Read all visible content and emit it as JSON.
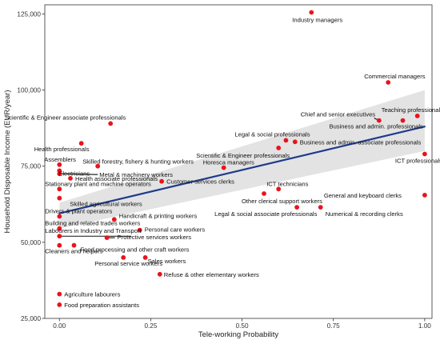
{
  "chart_data": {
    "type": "scatter",
    "xlabel": "Tele-working Probability",
    "ylabel": "Household Disposable Income (EUR/year)",
    "xlim": [
      -0.04,
      1.02
    ],
    "ylim": [
      25000,
      128000
    ],
    "x_ticks": [
      0,
      0.25,
      0.5,
      0.75,
      1
    ],
    "x_tick_labels": [
      "0.00",
      "0.25",
      "0.50",
      "0.75",
      "1.00"
    ],
    "y_ticks": [
      25000,
      50000,
      75000,
      100000,
      125000
    ],
    "y_tick_labels": [
      "25,000",
      "50,000",
      "75,000",
      "100,000",
      "125,000"
    ],
    "grid": false,
    "point_color": "#e8141c",
    "trend": {
      "type": "linear",
      "color": "#1f3b8c",
      "band_color": "#d9d9d9",
      "points": [
        [
          0,
          59500
        ],
        [
          1,
          88000
        ]
      ],
      "band_upper": [
        [
          0,
          63000
        ],
        [
          1,
          100000
        ]
      ],
      "band_lower": [
        [
          0,
          54500
        ],
        [
          1,
          80000
        ]
      ]
    },
    "points": [
      {
        "label": "Industry managers",
        "x": 0.69,
        "y": 125500
      },
      {
        "label": "Commercial managers",
        "x": 0.9,
        "y": 102500
      },
      {
        "label": "Teaching professionals",
        "x": 0.98,
        "y": 91500
      },
      {
        "label": "Chief and senior executives",
        "x": 0.875,
        "y": 90000
      },
      {
        "label": "Business and admin. professionals",
        "x": 0.94,
        "y": 90000
      },
      {
        "label": "Scientific & Engineer associate professionals",
        "x": 0.14,
        "y": 89000
      },
      {
        "label": "Legal & social professionals",
        "x": 0.62,
        "y": 83500
      },
      {
        "label": "Business and admin. associate professionals",
        "x": 0.645,
        "y": 83000
      },
      {
        "label": "Health professionals",
        "x": 0.06,
        "y": 82500
      },
      {
        "label": "Scientific & Engineer professionals",
        "x": 0.6,
        "y": 81000
      },
      {
        "label": "ICT professionals",
        "x": 1.0,
        "y": 79000
      },
      {
        "label": "Assemblers",
        "x": 0.0,
        "y": 75500
      },
      {
        "label": "Skilled forestry, fishery & hunting workers",
        "x": 0.105,
        "y": 75000
      },
      {
        "label": "Horesca managers",
        "x": 0.45,
        "y": 74500
      },
      {
        "label": "Electricians",
        "x": 0.0,
        "y": 73500
      },
      {
        "label": "Metal & machinery workers",
        "x": 0.0,
        "y": 72500
      },
      {
        "label": "Health associate professionals",
        "x": 0.03,
        "y": 71000
      },
      {
        "label": "Customer services clerks",
        "x": 0.28,
        "y": 70000
      },
      {
        "label": "Stationary plant and machine operators",
        "x": 0.0,
        "y": 67500
      },
      {
        "label": "ICT technicians",
        "x": 0.6,
        "y": 67500
      },
      {
        "label": "Other clerical support workers",
        "x": 0.56,
        "y": 66000
      },
      {
        "label": "General and keyboard clerks",
        "x": 1.0,
        "y": 65500
      },
      {
        "label": "Skilled agricultural workers",
        "x": 0.0,
        "y": 64500
      },
      {
        "label": "Legal & social associate professionals",
        "x": 0.65,
        "y": 61500
      },
      {
        "label": "Numerical & recording clerks",
        "x": 0.715,
        "y": 61500
      },
      {
        "label": "Drivers & plant operators",
        "x": 0.0,
        "y": 58500
      },
      {
        "label": "Handicraft & printing workers",
        "x": 0.15,
        "y": 57500
      },
      {
        "label": "Building and related trades workers",
        "x": 0.0,
        "y": 54500
      },
      {
        "label": "Personal care workers",
        "x": 0.22,
        "y": 54000
      },
      {
        "label": "Labourers in Industry and Transport",
        "x": 0.0,
        "y": 52000
      },
      {
        "label": "Protective services workers",
        "x": 0.13,
        "y": 51500
      },
      {
        "label": "Cleaners and helpers",
        "x": 0.0,
        "y": 49000
      },
      {
        "label": "Food processing and other craft workers",
        "x": 0.04,
        "y": 49000
      },
      {
        "label": "Personal service workers",
        "x": 0.175,
        "y": 45000
      },
      {
        "label": "Sales workers",
        "x": 0.235,
        "y": 45000
      },
      {
        "label": "Refuse & other elementary workers",
        "x": 0.275,
        "y": 39500
      },
      {
        "label": "Agriculture labourers",
        "x": 0.0,
        "y": 33000
      },
      {
        "label": "Food preparation assistants",
        "x": 0.0,
        "y": 29500
      }
    ]
  }
}
